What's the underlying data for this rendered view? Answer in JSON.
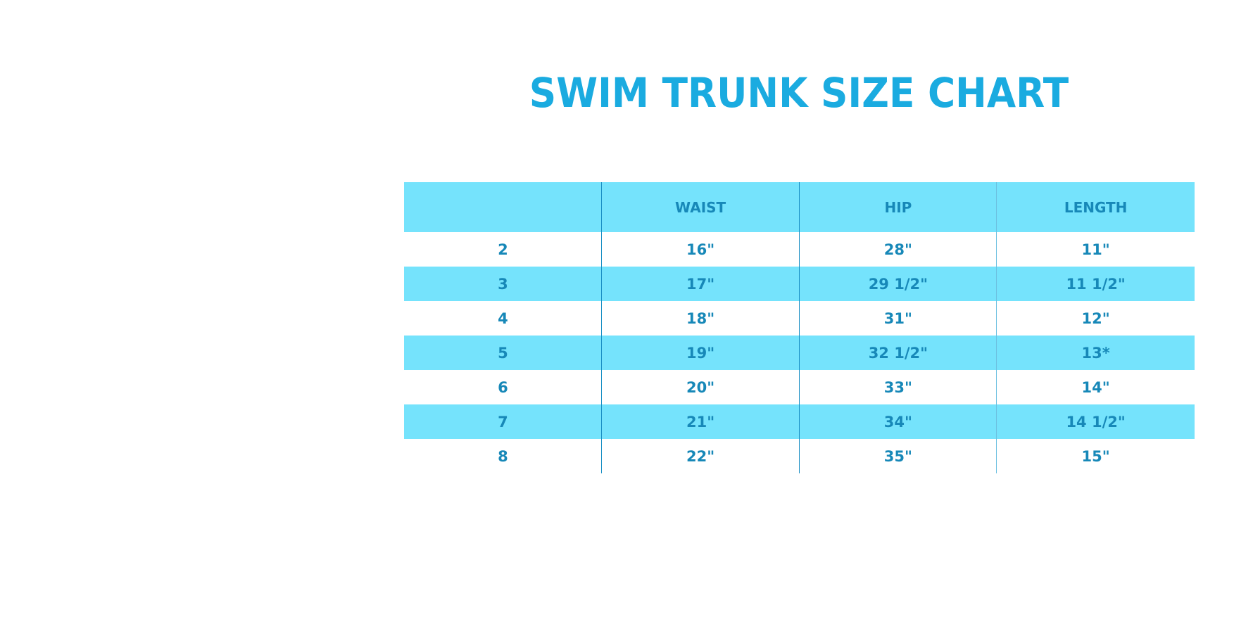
{
  "title": "SWIM TRUNK SIZE CHART",
  "colors": {
    "title": "#1aabe0",
    "header_bg": "#75e3fc",
    "text": "#1788b8"
  },
  "table": {
    "headers": [
      "",
      "WAIST",
      "HIP",
      "LENGTH"
    ],
    "rows": [
      [
        "2",
        "16\"",
        "28\"",
        "11\""
      ],
      [
        "3",
        "17\"",
        "29 1/2\"",
        "11 1/2\""
      ],
      [
        "4",
        "18\"",
        "31\"",
        "12\""
      ],
      [
        "5",
        "19\"",
        "32 1/2\"",
        "13*"
      ],
      [
        "6",
        "20\"",
        "33\"",
        "14\""
      ],
      [
        "7",
        "21\"",
        "34\"",
        "14 1/2\""
      ],
      [
        "8",
        "22\"",
        "35\"",
        "15\""
      ]
    ]
  }
}
